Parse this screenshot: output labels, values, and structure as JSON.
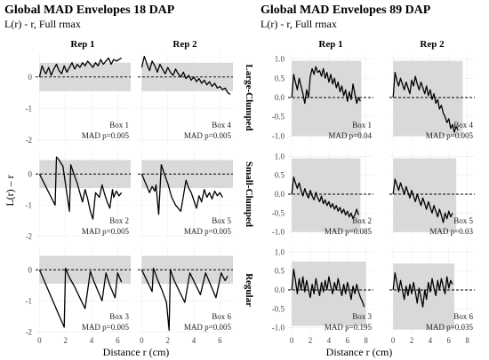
{
  "figure": {
    "left_title": "Global MAD Envelopes 18 DAP",
    "left_subtitle": "L(r) - r, Full rmax",
    "right_title": "Global MAD Envelopes 89 DAP",
    "right_subtitle": "L(r) - r, Full rmax",
    "ylabel": "L(r) – r",
    "xlabel": "Distance r (cm)",
    "col_labels": [
      "Rep 1",
      "Rep 2"
    ],
    "row_labels": [
      "Large-Clumped",
      "Small-Clumped",
      "Regular"
    ]
  },
  "chart_data": [
    {
      "type": "line",
      "title": "Global MAD Envelopes 18 DAP",
      "subtitle": "L(r) - r, Full rmax",
      "xlabel": "Distance r (cm)",
      "ylabel": "L(r) – r",
      "xlim": [
        -0.3,
        7
      ],
      "ylim": [
        -2.05,
        0.75
      ],
      "xticks": [
        "0",
        "2",
        "4",
        "6"
      ],
      "yticks": [
        "0",
        "-1",
        "-2"
      ],
      "panels": [
        {
          "row": "Large-Clumped",
          "rep": "Rep 1",
          "box": "Box 1",
          "mad": "MAD p=0.005",
          "envelope": [
            -0.45,
            0.45
          ],
          "x": [
            0,
            0.2,
            0.4,
            0.5,
            0.7,
            0.9,
            1.1,
            1.3,
            1.5,
            1.7,
            1.9,
            2.1,
            2.3,
            2.5,
            2.7,
            2.9,
            3.1,
            3.3,
            3.5,
            3.7,
            3.9,
            4.1,
            4.3,
            4.5,
            4.7,
            4.9,
            5.1,
            5.3,
            5.5,
            5.7,
            5.9,
            6.1,
            6.3
          ],
          "y": [
            0,
            0.35,
            0.15,
            0.1,
            0.3,
            0.05,
            0.25,
            0.4,
            0.2,
            0.1,
            0.35,
            0.15,
            0.3,
            0.45,
            0.25,
            0.4,
            0.3,
            0.45,
            0.35,
            0.5,
            0.4,
            0.3,
            0.45,
            0.35,
            0.55,
            0.4,
            0.5,
            0.6,
            0.4,
            0.55,
            0.5,
            0.55,
            0.6
          ]
        },
        {
          "row": "Large-Clumped",
          "rep": "Rep 2",
          "box": "Box 4",
          "mad": "MAD p=0.005",
          "envelope": [
            -0.45,
            0.45
          ],
          "x": [
            0,
            0.2,
            0.4,
            0.6,
            0.8,
            1.0,
            1.2,
            1.4,
            1.6,
            1.8,
            2.0,
            2.2,
            2.4,
            2.6,
            2.8,
            3.0,
            3.2,
            3.4,
            3.6,
            3.8,
            4.0,
            4.2,
            4.4,
            4.6,
            4.8,
            5.0,
            5.2,
            5.4,
            5.6,
            5.8,
            6.0,
            6.2,
            6.4,
            6.6,
            6.8
          ],
          "y": [
            0.3,
            0.65,
            0.4,
            0.2,
            0.5,
            0.35,
            0.15,
            0.4,
            0.25,
            0.1,
            0.3,
            0.15,
            0.05,
            0.25,
            0.1,
            0.0,
            0.15,
            -0.05,
            0.05,
            -0.1,
            0.0,
            -0.15,
            -0.05,
            -0.2,
            -0.1,
            -0.25,
            -0.15,
            -0.3,
            -0.2,
            -0.35,
            -0.3,
            -0.4,
            -0.35,
            -0.5,
            -0.55
          ]
        },
        {
          "row": "Small-Clumped",
          "rep": "Rep 1",
          "box": "Box 2",
          "mad": "MAD p=0.005",
          "envelope": [
            -0.45,
            0.45
          ],
          "x": [
            0,
            1.2,
            1.3,
            1.5,
            1.8,
            2.3,
            2.4,
            2.6,
            2.9,
            3.1,
            3.3,
            3.5,
            3.7,
            3.9,
            4.1,
            4.3,
            4.6,
            4.8,
            5.0,
            5.2,
            5.4,
            5.6,
            5.7,
            5.9,
            6.1,
            6.3
          ],
          "y": [
            0,
            -1.0,
            0.55,
            0.45,
            0.25,
            -1.2,
            0.3,
            0.05,
            -0.3,
            -0.6,
            -0.9,
            -0.5,
            -0.8,
            -1.2,
            -1.45,
            -0.6,
            -0.75,
            -0.35,
            -0.65,
            -0.9,
            -1.1,
            -0.5,
            -0.75,
            -0.55,
            -0.7,
            -0.6
          ]
        },
        {
          "row": "Small-Clumped",
          "rep": "Rep 2",
          "box": "Box 5",
          "mad": "MAD p=0.005",
          "envelope": [
            -0.45,
            0.45
          ],
          "x": [
            0,
            0.6,
            0.8,
            1.0,
            1.1,
            1.3,
            1.5,
            1.7,
            2.0,
            2.3,
            2.6,
            3.0,
            3.4,
            3.6,
            3.8,
            4.0,
            4.2,
            4.4,
            4.6,
            4.8,
            5.0,
            5.2,
            5.4,
            5.6,
            5.8,
            6.0,
            6.2
          ],
          "y": [
            0,
            -0.6,
            -0.4,
            -0.55,
            -0.35,
            -1.3,
            0.3,
            0.05,
            -0.3,
            -0.75,
            -1.0,
            -1.2,
            -0.2,
            -0.45,
            -0.6,
            -0.85,
            -1.1,
            -0.7,
            -0.9,
            -0.5,
            -0.75,
            -0.6,
            -0.8,
            -0.55,
            -0.7,
            -0.6,
            -0.75
          ]
        },
        {
          "row": "Regular",
          "rep": "Rep 1",
          "box": "Box 3",
          "mad": "MAD p=0.005",
          "envelope": [
            -0.45,
            0.45
          ],
          "x": [
            0,
            1.9,
            2.0,
            2.3,
            2.7,
            3.1,
            3.5,
            3.9,
            4.2,
            4.5,
            4.8,
            5.1,
            5.4,
            5.8,
            6.0,
            6.3
          ],
          "y": [
            0,
            -1.85,
            0.05,
            -0.25,
            -0.55,
            -0.9,
            -1.25,
            -0.05,
            -0.4,
            -0.7,
            -1.0,
            -0.1,
            -0.5,
            -0.9,
            -0.1,
            -0.4
          ]
        },
        {
          "row": "Regular",
          "rep": "Rep 2",
          "box": "Box 6",
          "mad": "MAD p=0.005",
          "envelope": [
            -0.45,
            0.45
          ],
          "x": [
            0,
            0.8,
            0.9,
            1.2,
            1.6,
            1.9,
            2.1,
            2.2,
            2.5,
            2.9,
            3.3,
            3.7,
            4.1,
            4.5,
            4.9,
            5.3,
            5.7,
            6.1,
            6.4,
            6.6
          ],
          "y": [
            0,
            -0.7,
            0.05,
            -0.3,
            -0.7,
            -1.05,
            -1.95,
            0.0,
            -0.35,
            -0.7,
            -1.05,
            -0.1,
            -0.45,
            -0.8,
            -0.1,
            -0.5,
            -0.9,
            -0.1,
            -0.35,
            -0.2
          ]
        }
      ]
    },
    {
      "type": "line",
      "title": "Global MAD Envelopes 89 DAP",
      "subtitle": "L(r) - r, Full rmax",
      "xlabel": "Distance r (cm)",
      "ylabel": "L(r) – r",
      "xlim": [
        -0.4,
        8.8
      ],
      "ylim": [
        -1.15,
        1.15
      ],
      "xticks": [
        "0",
        "2",
        "4",
        "6",
        "8"
      ],
      "yticks": [
        "1.0",
        "0.5",
        "0.0",
        "-0.5",
        "-1.0"
      ],
      "panels": [
        {
          "row": "Large-Clumped",
          "rep": "Rep 1",
          "box": "Box 1",
          "mad": "MAD p=0.04",
          "envelope": [
            -1.0,
            0.95
          ],
          "envelope_xmax": 7.5,
          "x": [
            0,
            0.2,
            0.4,
            0.6,
            0.8,
            1.0,
            1.2,
            1.4,
            1.6,
            1.8,
            2.0,
            2.2,
            2.4,
            2.6,
            2.8,
            3.0,
            3.2,
            3.4,
            3.6,
            3.8,
            4.0,
            4.2,
            4.4,
            4.6,
            4.8,
            5.0,
            5.2,
            5.4,
            5.6,
            5.8,
            6.0,
            6.2,
            6.4,
            6.6,
            6.8,
            7.0,
            7.2,
            7.4
          ],
          "y": [
            0,
            0.6,
            0.4,
            0.2,
            0.5,
            0.3,
            0.1,
            -0.15,
            0.2,
            0.0,
            0.55,
            0.75,
            0.6,
            0.8,
            0.65,
            0.7,
            0.55,
            0.75,
            0.5,
            0.65,
            0.4,
            0.6,
            0.35,
            0.5,
            0.25,
            0.4,
            0.15,
            0.3,
            0.05,
            0.2,
            -0.1,
            0.15,
            -0.05,
            0.35,
            0.1,
            -0.15,
            0.0,
            -0.1
          ]
        },
        {
          "row": "Large-Clumped",
          "rep": "Rep 2",
          "box": "Box 4",
          "mad": "MAD p=0.005",
          "envelope": [
            -1.0,
            0.95
          ],
          "envelope_xmax": 7.5,
          "x": [
            0,
            0.2,
            0.4,
            0.6,
            0.8,
            1.0,
            1.2,
            1.4,
            1.6,
            1.8,
            2.0,
            2.2,
            2.4,
            2.6,
            2.8,
            3.0,
            3.2,
            3.4,
            3.6,
            3.8,
            4.0,
            4.2,
            4.4,
            4.6,
            4.8,
            5.0,
            5.2,
            5.4,
            5.6,
            5.8,
            6.0,
            6.2,
            6.4,
            6.6,
            6.8,
            7.0
          ],
          "y": [
            0,
            0.65,
            0.45,
            0.3,
            0.5,
            0.35,
            0.2,
            0.4,
            0.25,
            0.1,
            0.45,
            0.3,
            0.55,
            0.35,
            0.2,
            0.4,
            0.25,
            0.1,
            0.3,
            0.05,
            0.2,
            -0.05,
            0.1,
            -0.15,
            -0.05,
            -0.3,
            -0.2,
            -0.4,
            -0.5,
            -0.65,
            -0.55,
            -0.8,
            -0.7,
            -0.9,
            -0.75,
            -0.85
          ]
        },
        {
          "row": "Small-Clumped",
          "rep": "Rep 1",
          "box": "Box 2",
          "mad": "MAD p=0.085",
          "envelope": [
            -1.0,
            0.95
          ],
          "envelope_xmax": 7.4,
          "x": [
            0,
            0.2,
            0.4,
            0.6,
            0.8,
            1.0,
            1.2,
            1.4,
            1.6,
            1.8,
            2.0,
            2.2,
            2.4,
            2.6,
            2.8,
            3.0,
            3.2,
            3.4,
            3.6,
            3.8,
            4.0,
            4.2,
            4.4,
            4.6,
            4.8,
            5.0,
            5.2,
            5.4,
            5.6,
            5.8,
            6.0,
            6.2,
            6.4,
            6.6,
            6.8,
            7.0,
            7.2
          ],
          "y": [
            0,
            0.45,
            0.3,
            0.15,
            0.3,
            0.1,
            -0.05,
            0.15,
            0.0,
            -0.1,
            0.1,
            -0.05,
            -0.15,
            0.05,
            -0.1,
            -0.2,
            -0.05,
            -0.25,
            -0.15,
            -0.3,
            -0.2,
            -0.35,
            -0.25,
            -0.4,
            -0.3,
            -0.45,
            -0.35,
            -0.5,
            -0.4,
            -0.55,
            -0.45,
            -0.6,
            -0.5,
            -0.65,
            -0.55,
            -0.4,
            -0.55
          ]
        },
        {
          "row": "Small-Clumped",
          "rep": "Rep 2",
          "box": "Box 5",
          "mad": "MAD p=0.03",
          "envelope": [
            -1.0,
            0.95
          ],
          "envelope_xmax": 6.8,
          "x": [
            0,
            0.2,
            0.4,
            0.6,
            0.8,
            1.0,
            1.2,
            1.4,
            1.6,
            1.8,
            2.0,
            2.2,
            2.4,
            2.6,
            2.8,
            3.0,
            3.2,
            3.4,
            3.6,
            3.8,
            4.0,
            4.2,
            4.4,
            4.6,
            4.8,
            5.0,
            5.2,
            5.4,
            5.6,
            5.8,
            6.0,
            6.2,
            6.4
          ],
          "y": [
            0,
            0.4,
            0.25,
            0.1,
            0.3,
            0.15,
            0.0,
            0.2,
            0.05,
            -0.1,
            0.1,
            -0.05,
            -0.2,
            0.0,
            -0.15,
            -0.3,
            -0.1,
            -0.25,
            -0.4,
            -0.2,
            -0.35,
            -0.5,
            -0.3,
            -0.45,
            -0.6,
            -0.4,
            -0.55,
            -0.75,
            -0.5,
            -0.65,
            -0.45,
            -0.6,
            -0.5
          ]
        },
        {
          "row": "Regular",
          "rep": "Rep 1",
          "box": "Box 3",
          "mad": "MAD p=0.195",
          "envelope": [
            -0.95,
            0.75
          ],
          "envelope_xmax": 8.0,
          "x": [
            0,
            0.2,
            0.4,
            0.6,
            0.8,
            1.0,
            1.2,
            1.4,
            1.6,
            1.8,
            2.0,
            2.2,
            2.4,
            2.6,
            2.8,
            3.0,
            3.2,
            3.4,
            3.6,
            3.8,
            4.0,
            4.2,
            4.4,
            4.6,
            4.8,
            5.0,
            5.2,
            5.4,
            5.6,
            5.8,
            6.0,
            6.2,
            6.4,
            6.6,
            6.8,
            7.0,
            7.2,
            7.4,
            7.6,
            7.8
          ],
          "y": [
            0,
            0.55,
            0.25,
            -0.1,
            0.3,
            0.0,
            0.35,
            -0.05,
            0.25,
            0.0,
            -0.2,
            0.15,
            -0.1,
            0.3,
            0.05,
            -0.15,
            0.2,
            -0.05,
            0.25,
            0.0,
            0.35,
            0.1,
            -0.1,
            0.2,
            0.0,
            0.3,
            0.05,
            -0.15,
            0.15,
            -0.1,
            0.2,
            0.0,
            -0.25,
            0.1,
            -0.1,
            0.15,
            -0.05,
            -0.2,
            -0.3,
            -0.45
          ]
        },
        {
          "row": "Regular",
          "rep": "Rep 2",
          "box": "Box 6",
          "mad": "MAD p=0.035",
          "envelope": [
            -1.05,
            0.7
          ],
          "envelope_xmax": 6.6,
          "x": [
            0,
            0.2,
            0.4,
            0.6,
            0.8,
            1.0,
            1.2,
            1.4,
            1.6,
            1.8,
            2.0,
            2.2,
            2.4,
            2.6,
            2.8,
            3.0,
            3.2,
            3.4,
            3.6,
            3.8,
            4.0,
            4.2,
            4.4,
            4.6,
            4.8,
            5.0,
            5.2,
            5.4,
            5.6,
            5.8,
            6.0,
            6.2,
            6.4
          ],
          "y": [
            0,
            0.45,
            0.2,
            -0.05,
            0.25,
            0.0,
            -0.25,
            0.1,
            -0.15,
            0.15,
            -0.1,
            0.2,
            -0.05,
            -0.35,
            0.05,
            -0.2,
            -0.45,
            0.0,
            -0.25,
            0.2,
            -0.05,
            0.3,
            0.05,
            -0.15,
            0.25,
            0.0,
            0.3,
            0.1,
            -0.1,
            0.35,
            0.05,
            0.25,
            0.15
          ]
        }
      ]
    }
  ]
}
